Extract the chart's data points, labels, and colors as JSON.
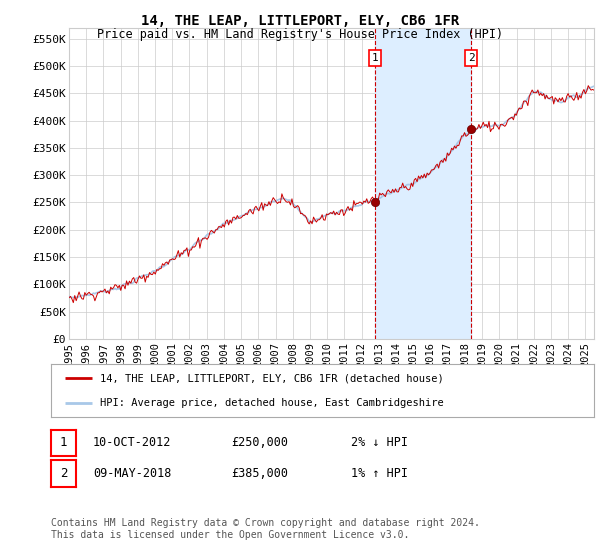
{
  "title": "14, THE LEAP, LITTLEPORT, ELY, CB6 1FR",
  "subtitle": "Price paid vs. HM Land Registry's House Price Index (HPI)",
  "ylabel_ticks": [
    "£0",
    "£50K",
    "£100K",
    "£150K",
    "£200K",
    "£250K",
    "£300K",
    "£350K",
    "£400K",
    "£450K",
    "£500K",
    "£550K"
  ],
  "ytick_values": [
    0,
    50000,
    100000,
    150000,
    200000,
    250000,
    300000,
    350000,
    400000,
    450000,
    500000,
    550000
  ],
  "ylim": [
    0,
    570000
  ],
  "xlim_start": 1995.0,
  "xlim_end": 2025.5,
  "hpi_color": "#a8c8e8",
  "price_color": "#cc0000",
  "sale1_date": 2012.78,
  "sale1_price": 250000,
  "sale2_date": 2018.36,
  "sale2_price": 385000,
  "shade_color": "#ddeeff",
  "legend_line1": "14, THE LEAP, LITTLEPORT, ELY, CB6 1FR (detached house)",
  "legend_line2": "HPI: Average price, detached house, East Cambridgeshire",
  "note1_date": "10-OCT-2012",
  "note1_price": "£250,000",
  "note1_hpi": "2% ↓ HPI",
  "note2_date": "09-MAY-2018",
  "note2_price": "£385,000",
  "note2_hpi": "1% ↑ HPI",
  "footer": "Contains HM Land Registry data © Crown copyright and database right 2024.\nThis data is licensed under the Open Government Licence v3.0.",
  "bg_color": "#ffffff",
  "grid_color": "#cccccc"
}
